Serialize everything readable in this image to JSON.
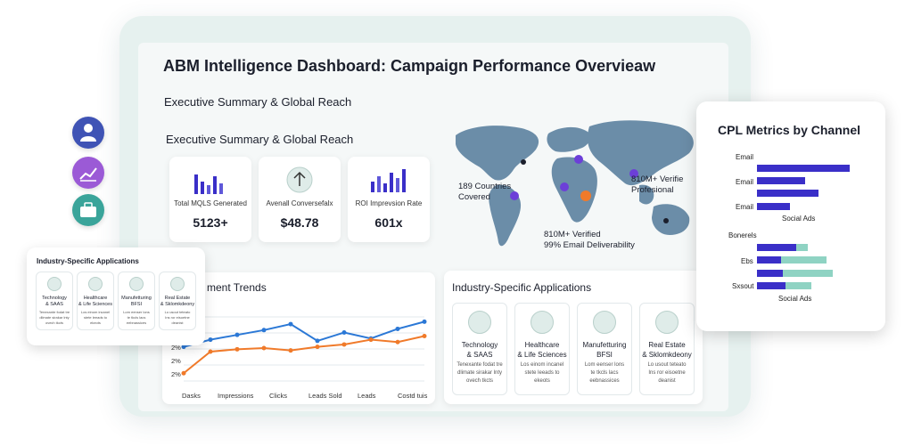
{
  "dashboard": {
    "title": "ABM Intelligence Dashboard: Campaign Performance Overvieaw",
    "subtitle_1": "Executive Summary & Global Reach",
    "subtitle_2": "Executive Summary & Global Reach"
  },
  "kpis": [
    {
      "label": "Total MQLS Generated",
      "value": "5123+",
      "icon": "bar-chart-icon"
    },
    {
      "label": "Avenall Conversefalx",
      "value": "$48.78",
      "icon": "arrow-up-icon"
    },
    {
      "label": "ROI Imprevsion Rate",
      "value": "601x",
      "icon": "bar-chart-icon"
    }
  ],
  "map": {
    "countries_line1": "189 Countries",
    "countries_line2": "Covered",
    "verified_line1": "810M+ Verifie",
    "verified_line2": "Profesional",
    "email_line1": "810M+ Verified",
    "email_line2": "99% Email Deliverability"
  },
  "side_icons": [
    "user-badge-icon",
    "growth-chart-icon",
    "briefcase-icon"
  ],
  "side_colors": [
    "#3f53b5",
    "#9b5ad6",
    "#3aa49a"
  ],
  "trends": {
    "title": "ment Trends",
    "y_labels": [
      "2%",
      "2%",
      "2%"
    ],
    "x_labels": [
      "Dasks",
      "Impressions",
      "Clicks",
      "Leads Sold",
      "Leads",
      "Costd tuis"
    ]
  },
  "chart_data": {
    "type": "line",
    "series": [
      {
        "values": [
          3.0,
          3.6,
          4.0,
          4.4,
          4.9,
          3.5,
          4.2,
          3.7,
          4.5,
          5.1
        ]
      },
      {
        "values": [
          0.8,
          2.6,
          2.8,
          2.9,
          2.7,
          3.0,
          3.2,
          3.6,
          3.4,
          3.9
        ]
      }
    ],
    "colors": [
      "#2b78d6",
      "#f07a2a"
    ]
  },
  "industry_main": {
    "title": "Industry-Specific Applications",
    "items": [
      {
        "name1": "Technology",
        "name2": "& SAAS",
        "desc1": "Tenexante fodat tre",
        "desc2": "dlimate sirakar lnty",
        "desc3": "ovech tkcts",
        "icon": "bulb-icon"
      },
      {
        "name1": "Healthcare",
        "name2": "& Life Sciences",
        "desc1": "Los einom incanel",
        "desc2": "stete leeads to",
        "desc3": "ekeots",
        "icon": "document-icon"
      },
      {
        "name1": "Manufetturing",
        "name2": "BFSI",
        "desc1": "Lom eenser lons",
        "desc2": "te tkcls lacs",
        "desc3": "eebnassices",
        "icon": "dollar-icon"
      },
      {
        "name1": "Real Estate",
        "name2": "& Sklomkdeony",
        "desc1": "Lo usout teteato",
        "desc2": "Ins ror eisoetne",
        "desc3": "deanist",
        "icon": "monitor-icon"
      }
    ]
  },
  "industry_mini": {
    "title": "Industry-Specific Applications",
    "items": [
      {
        "name1": "Technology",
        "name2": "& SAAS",
        "desc1": "Tenexante fodat tre",
        "desc2": "dlimate sirakar lnty",
        "desc3": "ovech tkcts",
        "icon": "bulb-icon"
      },
      {
        "name1": "Healthcare",
        "name2": "& Life Sciences",
        "desc1": "Los einom incanel",
        "desc2": "stete leeads to",
        "desc3": "ekeots",
        "icon": "document-icon"
      },
      {
        "name1": "Manufetturing",
        "name2": "BFSI",
        "desc1": "Lom eenser lons",
        "desc2": "te tkcls lacs",
        "desc3": "eebnassices",
        "icon": "dollar-icon"
      },
      {
        "name1": "Real Estate",
        "name2": "& Sklomkdeony",
        "desc1": "Lo usout teteato",
        "desc2": "Ins ror eisoetne",
        "desc3": "deanist",
        "icon": "monitor-icon"
      }
    ]
  },
  "cpl": {
    "title": "CPL Metrics by Channel",
    "rows_top": [
      "Email",
      "Email",
      "Email"
    ],
    "caption_top": "Social Ads",
    "rows_bottom": [
      "Bonerels",
      "Ebs",
      "Sxsout"
    ],
    "caption_bottom": "Social Ads",
    "bars_top": [
      {
        "purple": 1.0
      },
      {
        "purple": 0.52
      },
      {
        "purple": 0.66
      },
      {
        "purple": 0.36
      }
    ],
    "bars_bottom": [
      {
        "purple": 0.42,
        "teal": 0.55
      },
      {
        "purple": 0.26,
        "teal": 0.75
      },
      {
        "purple": 0.28,
        "teal": 0.82
      },
      {
        "purple": 0.31,
        "teal": 0.59
      }
    ],
    "purple_color": "#3a2fc8",
    "teal_color": "#8fd3c3"
  }
}
